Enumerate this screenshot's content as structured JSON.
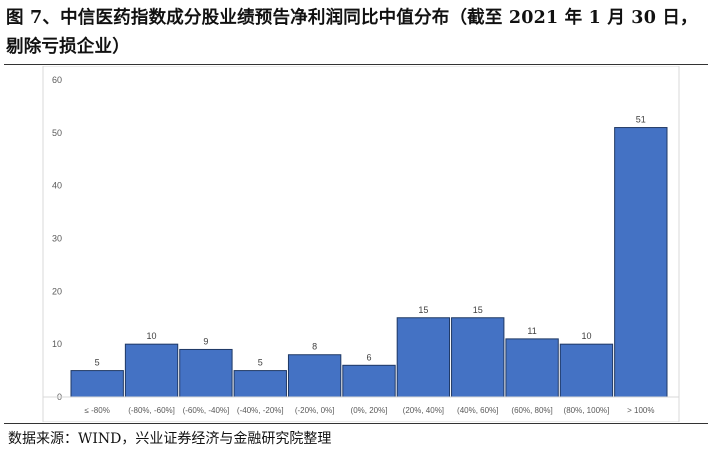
{
  "caption": {
    "title": "图 7、中信医药指数成分股业绩预告净利润同比中值分布（截至 2021 年 1 月 30 日，剔除亏损企业）",
    "source": "数据来源：WIND，兴业证券经济与金融研究院整理"
  },
  "chart_data": {
    "type": "bar",
    "title": "",
    "xlabel": "",
    "ylabel": "",
    "categories": [
      "≤ -80%",
      "(-80%, -60%]",
      "(-60%, -40%]",
      "(-40%, -20%]",
      "(-20%, 0%]",
      "(0%, 20%]",
      "(20%, 40%]",
      "(40%, 60%]",
      "(60%, 80%]",
      "(80%, 100%]",
      "> 100%"
    ],
    "values": [
      5,
      10,
      9,
      5,
      8,
      6,
      15,
      15,
      11,
      10,
      51
    ],
    "ylim": [
      0,
      60
    ],
    "yticks": [
      0,
      10,
      20,
      30,
      40,
      50,
      60
    ],
    "grid": false,
    "legend": "none",
    "bar_color": "#4472C4",
    "bar_edge_color": "#1F3864",
    "data_labels": true
  }
}
